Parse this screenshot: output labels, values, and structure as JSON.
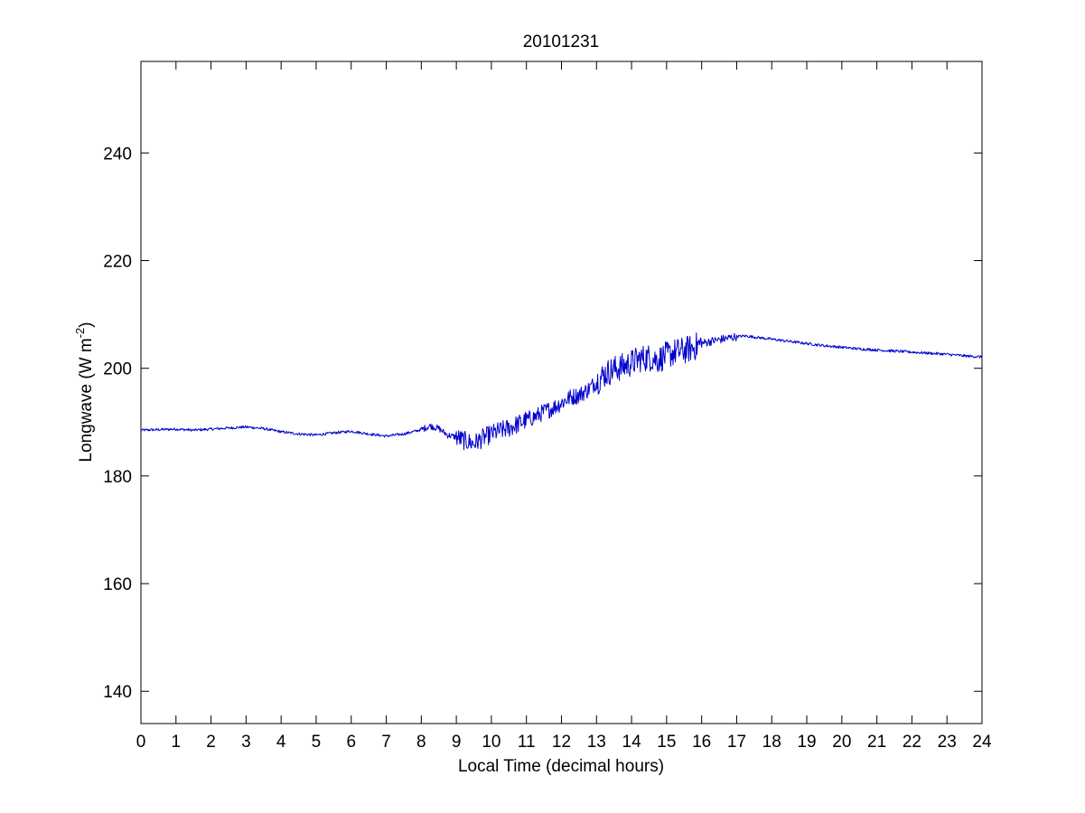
{
  "chart_data": {
    "type": "line",
    "title": "20101231",
    "xlabel": "Local Time (decimal hours)",
    "ylabel": {
      "main": "Longwave (W m",
      "superscript": "-2",
      "close": ")"
    },
    "xlim": [
      0,
      24
    ],
    "ylim": [
      134,
      257
    ],
    "xticks": [
      0,
      1,
      2,
      3,
      4,
      5,
      6,
      7,
      8,
      9,
      10,
      11,
      12,
      13,
      14,
      15,
      16,
      17,
      18,
      19,
      20,
      21,
      22,
      23,
      24
    ],
    "yticks": [
      140,
      160,
      180,
      200,
      220,
      240
    ],
    "grid": false,
    "line_color": "#0000cc",
    "series": [
      {
        "x": [
          0,
          0.5,
          1,
          1.5,
          2,
          2.5,
          3,
          3.5,
          4,
          4.5,
          5,
          5.5,
          6,
          6.5,
          7,
          7.5,
          8,
          8.25,
          8.5,
          8.75,
          9,
          9.25,
          9.5,
          9.75,
          10,
          10.25,
          10.5,
          10.75,
          11,
          11.25,
          11.5,
          11.75,
          12,
          12.25,
          12.5,
          12.75,
          13,
          13.25,
          13.5,
          13.75,
          14,
          14.25,
          14.5,
          14.75,
          15,
          15.25,
          15.5,
          15.75,
          16,
          16.25,
          16.5,
          16.75,
          17,
          17.25,
          17.5,
          18,
          18.5,
          19,
          19.5,
          20,
          20.5,
          21,
          21.5,
          22,
          22.5,
          23,
          23.5,
          24
        ],
        "y": [
          188.5,
          188.6,
          188.7,
          188.5,
          188.7,
          188.9,
          189.1,
          188.8,
          188.2,
          187.8,
          187.6,
          188.0,
          188.3,
          187.8,
          187.4,
          187.8,
          188.6,
          189.3,
          188.8,
          187.6,
          187.2,
          186.5,
          186.0,
          187.0,
          187.8,
          188.4,
          188.9,
          189.6,
          190.4,
          191.0,
          191.9,
          192.6,
          193.6,
          194.6,
          195.0,
          196.0,
          197.5,
          199.0,
          199.8,
          200.3,
          201.0,
          201.8,
          202.0,
          201.6,
          202.4,
          203.0,
          203.3,
          203.8,
          204.6,
          205.0,
          205.3,
          205.6,
          205.9,
          206.0,
          205.8,
          205.4,
          205.0,
          204.6,
          204.2,
          203.9,
          203.6,
          203.4,
          203.2,
          203.0,
          202.8,
          202.6,
          202.3,
          202.1
        ]
      }
    ]
  }
}
